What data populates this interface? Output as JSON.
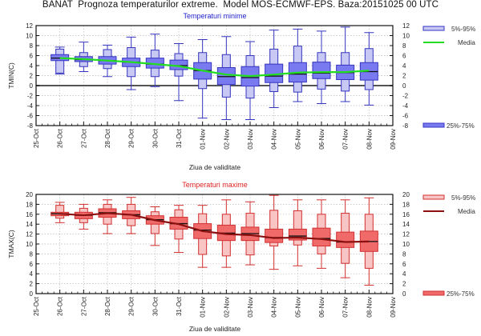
{
  "page_title": "BANAT  Prognoza temperaturilor extreme.  Model MOS-ECMWF-EPS. Baza:20151025 00 UTC",
  "chart_data": [
    {
      "type": "boxplot",
      "title": "Temperaturi minime",
      "title_color": "#2222cc",
      "xlabel": "Ziua de validitate",
      "ylabel": "TMIN(C)",
      "ylim": [
        -8,
        12
      ],
      "yticks": [
        -8,
        -6,
        -4,
        -2,
        0,
        2,
        4,
        6,
        8,
        10,
        12
      ],
      "grid": true,
      "x_tick_labels": [
        "25-Oct",
        "26-Oct",
        "27-Oct",
        "28-Oct",
        "29-Oct",
        "30-Oct",
        "31-Oct",
        "01-Nov",
        "02-Nov",
        "03-Nov",
        "04-Nov",
        "05-Nov",
        "06-Nov",
        "07-Nov",
        "08-Nov",
        "09-Nov"
      ],
      "colors": {
        "outer": "#c8c8f4",
        "inner": "#7a7af0",
        "stroke": "#3535c0",
        "median_line": "#22dd22",
        "zero_line": "#555555"
      },
      "legend": {
        "placement": "right",
        "entries": [
          "5%-95%",
          "Media",
          "25%-75%"
        ]
      },
      "categories": [
        "26-Oct",
        "27-Oct",
        "28-Oct",
        "29-Oct",
        "30-Oct",
        "31-Oct",
        "01-Nov",
        "02-Nov",
        "03-Nov",
        "04-Nov",
        "05-Nov",
        "06-Nov",
        "07-Nov",
        "08-Nov"
      ],
      "whisker_low": [
        2.3,
        2.8,
        1.8,
        -0.8,
        -0.2,
        -3.0,
        -6.5,
        -6.8,
        -6.8,
        -4.4,
        -3.2,
        -3.6,
        -3.2,
        -3.9
      ],
      "whisker_high": [
        7.7,
        8.7,
        8.1,
        9.7,
        10.3,
        8.4,
        9.2,
        9.8,
        8.8,
        11.1,
        11.3,
        10.9,
        11.7,
        10.6
      ],
      "p5": [
        2.5,
        3.8,
        3.4,
        1.8,
        1.8,
        1.9,
        -0.6,
        -2.3,
        -2.5,
        -1.2,
        -1.3,
        -0.7,
        -1.1,
        -0.8
      ],
      "p95": [
        7.3,
        6.6,
        7.2,
        7.6,
        7.1,
        6.4,
        6.6,
        6.2,
        6.0,
        7.3,
        7.9,
        6.6,
        6.6,
        7.4
      ],
      "p25": [
        5.0,
        4.8,
        4.3,
        3.8,
        3.5,
        3.2,
        1.3,
        0.2,
        -0.1,
        0.6,
        0.7,
        1.4,
        1.2,
        1.1
      ],
      "p75": [
        6.2,
        5.8,
        5.8,
        5.5,
        5.5,
        5.1,
        4.6,
        3.6,
        3.8,
        4.3,
        4.6,
        4.7,
        4.1,
        4.6
      ],
      "median": [
        5.5,
        5.2,
        5.0,
        4.7,
        4.3,
        4.0,
        3.0,
        1.8,
        1.6,
        1.9,
        2.3,
        2.5,
        2.6,
        2.8
      ],
      "media": [
        5.5,
        5.3,
        5.0,
        4.7,
        4.3,
        3.9,
        3.0,
        2.2,
        1.9,
        2.2,
        2.6,
        2.7,
        2.7,
        3.0
      ]
    },
    {
      "type": "boxplot",
      "title": "Temperaturi maxime",
      "title_color": "#dd2222",
      "xlabel": "Ziua de validitate",
      "ylabel": "TMAX(C)",
      "ylim": [
        0,
        20
      ],
      "yticks": [
        0,
        2,
        4,
        6,
        8,
        10,
        12,
        14,
        16,
        18,
        20
      ],
      "grid": true,
      "x_tick_labels": [
        "25-Oct",
        "26-Oct",
        "27-Oct",
        "28-Oct",
        "29-Oct",
        "30-Oct",
        "31-Oct",
        "01-Nov",
        "02-Nov",
        "03-Nov",
        "04-Nov",
        "05-Nov",
        "06-Nov",
        "07-Nov",
        "08-Nov",
        "09-Nov"
      ],
      "colors": {
        "outer": "#f8c4c4",
        "inner": "#f06a6a",
        "stroke": "#d23030",
        "median_line": "#8b1010",
        "zero_line": "#555555"
      },
      "legend": {
        "placement": "right",
        "entries": [
          "5%-95%",
          "Media",
          "25%-75%"
        ]
      },
      "categories": [
        "26-Oct",
        "27-Oct",
        "28-Oct",
        "29-Oct",
        "30-Oct",
        "31-Oct",
        "01-Nov",
        "02-Nov",
        "03-Nov",
        "04-Nov",
        "05-Nov",
        "06-Nov",
        "07-Nov",
        "08-Nov"
      ],
      "whisker_low": [
        14.3,
        13.0,
        12.1,
        12.1,
        9.7,
        8.3,
        5.3,
        5.3,
        5.8,
        4.9,
        5.6,
        5.1,
        3.2,
        1.7
      ],
      "whisker_high": [
        18.4,
        18.0,
        18.9,
        19.4,
        17.5,
        17.8,
        17.8,
        18.9,
        18.5,
        19.8,
        18.9,
        18.9,
        18.9,
        19.3
      ],
      "p5": [
        15.2,
        14.3,
        14.0,
        13.7,
        12.1,
        11.0,
        7.9,
        7.6,
        7.8,
        9.6,
        9.8,
        8.0,
        6.1,
        5.1
      ],
      "p95": [
        17.8,
        17.2,
        18.0,
        18.0,
        16.5,
        16.9,
        16.1,
        16.0,
        16.2,
        16.8,
        16.7,
        16.0,
        16.2,
        16.0
      ],
      "p25": [
        15.7,
        15.1,
        15.4,
        15.1,
        14.0,
        13.0,
        11.1,
        10.7,
        10.7,
        10.3,
        10.8,
        9.6,
        9.3,
        8.5
      ],
      "p75": [
        16.4,
        16.4,
        17.1,
        16.7,
        15.7,
        15.4,
        14.1,
        13.8,
        13.4,
        13.0,
        13.0,
        13.2,
        12.4,
        12.6
      ],
      "median": [
        16.1,
        15.8,
        16.3,
        15.9,
        14.9,
        14.1,
        12.8,
        12.2,
        12.1,
        11.3,
        11.6,
        11.1,
        10.4,
        10.5
      ],
      "media": [
        16.1,
        15.8,
        16.2,
        15.9,
        14.8,
        14.0,
        12.6,
        12.0,
        11.8,
        11.2,
        11.3,
        11.0,
        10.4,
        10.5
      ]
    }
  ]
}
